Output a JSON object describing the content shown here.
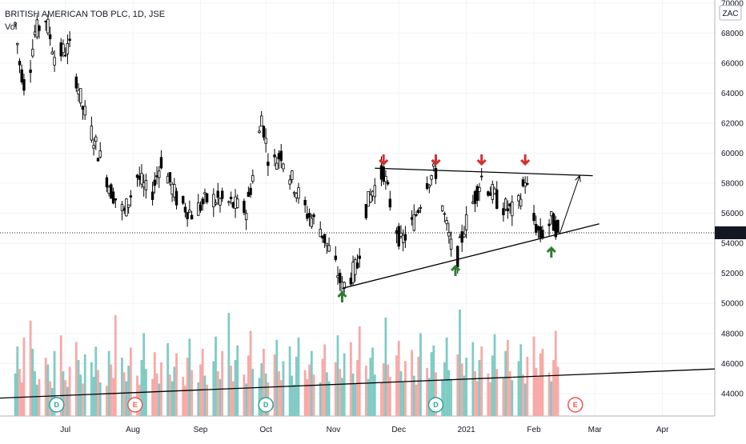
{
  "header": {
    "symbol_line": "BRITISH AMERICAN TOB PLC, 1D, JSE",
    "vol_label": "Vol"
  },
  "currency_label": "ZAC",
  "colors": {
    "up": "#26a69a",
    "down": "#ef5350",
    "vol_up": "#80cbc4",
    "vol_down": "#f7a9a7",
    "candle": "#000000",
    "resistance_arrow": "#d32f2f",
    "support_arrow": "#2e7d32",
    "price_badge": "#131722",
    "grid": "#f0f3fa"
  },
  "chart_data": {
    "type": "candlestick",
    "interval": "1D",
    "exchange": "JSE",
    "ylim": [
      42500,
      70200
    ],
    "y_ticks": [
      44000,
      46000,
      48000,
      50000,
      52000,
      54000,
      56000,
      58000,
      60000,
      62000,
      64000,
      66000,
      68000,
      70000
    ],
    "x_ticks": [
      "Jul",
      "Aug",
      "Sep",
      "Oct",
      "Nov",
      "Dec",
      "2021",
      "Feb",
      "Mar",
      "Apr"
    ],
    "last_price": 54700,
    "last_price_label": "54700",
    "price_path": [
      [
        "2020-06-08",
        68600
      ],
      [
        "2020-06-10",
        66000
      ],
      [
        "2020-06-13",
        64000
      ],
      [
        "2020-06-17",
        68000
      ],
      [
        "2020-06-22",
        69000
      ],
      [
        "2020-06-26",
        66500
      ],
      [
        "2020-07-03",
        67000
      ],
      [
        "2020-07-09",
        63000
      ],
      [
        "2020-07-14",
        61000
      ],
      [
        "2020-07-22",
        57500
      ],
      [
        "2020-07-28",
        56000
      ],
      [
        "2020-08-03",
        58500
      ],
      [
        "2020-08-09",
        57000
      ],
      [
        "2020-08-14",
        59500
      ],
      [
        "2020-08-21",
        57000
      ],
      [
        "2020-08-28",
        56000
      ],
      [
        "2020-09-05",
        57000
      ],
      [
        "2020-09-12",
        56800
      ],
      [
        "2020-09-22",
        56200
      ],
      [
        "2020-09-27",
        60000
      ],
      [
        "2020-09-29",
        62500
      ],
      [
        "2020-10-03",
        59000
      ],
      [
        "2020-10-08",
        60000
      ],
      [
        "2020-10-13",
        58200
      ],
      [
        "2020-10-20",
        56000
      ],
      [
        "2020-10-26",
        55000
      ],
      [
        "2020-11-02",
        52500
      ],
      [
        "2020-11-05",
        51000
      ],
      [
        "2020-11-12",
        52500
      ],
      [
        "2020-11-15",
        56000
      ],
      [
        "2020-11-19",
        57500
      ],
      [
        "2020-11-24",
        58800
      ],
      [
        "2020-11-28",
        56000
      ],
      [
        "2020-12-02",
        54000
      ],
      [
        "2020-12-08",
        55500
      ],
      [
        "2020-12-14",
        58200
      ],
      [
        "2020-12-18",
        58800
      ],
      [
        "2020-12-23",
        55000
      ],
      [
        "2020-12-27",
        52500
      ],
      [
        "2020-12-31",
        55000
      ],
      [
        "2021-01-08",
        58400
      ],
      [
        "2021-01-12",
        57500
      ],
      [
        "2021-01-17",
        56500
      ],
      [
        "2021-01-24",
        56000
      ],
      [
        "2021-01-28",
        58300
      ],
      [
        "2021-02-01",
        55500
      ],
      [
        "2021-02-04",
        54500
      ],
      [
        "2021-02-09",
        55500
      ],
      [
        "2021-02-13",
        54700
      ]
    ],
    "volume": {
      "axis_max": 1,
      "relative": [
        0.38,
        0.62,
        0.42,
        0.3,
        0.7,
        0.85,
        0.6,
        0.4,
        0.28,
        0.33,
        0.52,
        0.46,
        0.31,
        0.25,
        0.58,
        0.72,
        0.4,
        0.32,
        0.26,
        0.44,
        0.66,
        0.5,
        0.37,
        0.29,
        0.55,
        0.48,
        0.35,
        0.62,
        0.41,
        0.3,
        0.27,
        0.58,
        0.46,
        0.34,
        0.9,
        0.52,
        0.39,
        0.31,
        0.45,
        0.61,
        0.36,
        0.28,
        0.5,
        0.74,
        0.42,
        0.33,
        0.57,
        0.38,
        0.29,
        0.48,
        0.65,
        0.37,
        0.31,
        0.44,
        0.56,
        0.35,
        0.27,
        0.52,
        0.69,
        0.41,
        0.3,
        0.46,
        0.6,
        0.36,
        0.28,
        0.49,
        0.71,
        0.4,
        0.33,
        0.58,
        0.92,
        0.45,
        0.31,
        0.5,
        0.63,
        0.37,
        0.29,
        0.54,
        0.76,
        0.42,
        0.34,
        0.47,
        0.6,
        0.38,
        0.3,
        0.55,
        0.68,
        0.4,
        0.32,
        0.49,
        0.62,
        0.36,
        0.28,
        0.53,
        0.7,
        0.41,
        0.33,
        0.46,
        0.58,
        0.37,
        0.3,
        0.51,
        0.64,
        0.39,
        0.31,
        0.48,
        0.72,
        0.42,
        0.34,
        0.56,
        0.66,
        0.38,
        0.29,
        0.5,
        0.8,
        0.45,
        0.33,
        0.52,
        0.61,
        0.37,
        0.3,
        0.47,
        0.88,
        0.46,
        0.35,
        0.54,
        0.67,
        0.4,
        0.31,
        0.49,
        0.59,
        0.36,
        0.28,
        0.53,
        0.74,
        0.43,
        0.34,
        0.57,
        0.63,
        0.39,
        0.32,
        0.48,
        0.7,
        0.41,
        0.33,
        0.55,
        0.95,
        0.47,
        0.36,
        0.52,
        0.66,
        0.4,
        0.31,
        0.5,
        0.62,
        0.38,
        0.3,
        0.54,
        0.73,
        0.42,
        0.34,
        0.58,
        0.68,
        0.4,
        0.32,
        0.49,
        0.64,
        0.37,
        0.29,
        0.53,
        0.71,
        0.43,
        0.35,
        0.56,
        0.6,
        0.39,
        0.31,
        0.5,
        0.76,
        0.44,
        0.34,
        0.55,
        0.67,
        0.41,
        0.33,
        0.52,
        0.63,
        0.38,
        0.3,
        0.48,
        0.7,
        0.42,
        0.35,
        0.57,
        0.82,
        0.46,
        0.36,
        0.54,
        0.65,
        0.4,
        0.32,
        0.51,
        0.72,
        0.43,
        0.34,
        0.58,
        0.69,
        0.41,
        0.33,
        0.5,
        0.88,
        0.47,
        0.37,
        0.56,
        0.62,
        0.4
      ]
    },
    "events": [
      {
        "date": "2020-06-27",
        "label": "D"
      },
      {
        "date": "2020-08-02",
        "label": "E"
      },
      {
        "date": "2020-10-01",
        "label": "D"
      },
      {
        "date": "2020-12-18",
        "label": "D"
      },
      {
        "date": "2021-02-20",
        "label": "E"
      }
    ],
    "annotations": {
      "resistance_line": [
        [
          "2020-11-20",
          59000
        ],
        [
          "2021-02-28",
          58500
        ]
      ],
      "support_line": [
        [
          "2020-11-05",
          51000
        ],
        [
          "2021-03-03",
          55300
        ]
      ],
      "projection_arrow": [
        [
          "2021-02-13",
          54700
        ],
        [
          "2021-02-22",
          58500
        ]
      ],
      "resistance_arrows": [
        "2020-11-24",
        "2020-12-18",
        "2021-01-08",
        "2021-01-28"
      ],
      "support_arrows": [
        "2020-11-05",
        "2020-12-27",
        "2021-02-09"
      ],
      "volume_trend_line": [
        [
          "2020-06-01",
          0.16
        ],
        [
          "2021-04-25",
          0.42
        ]
      ]
    }
  }
}
